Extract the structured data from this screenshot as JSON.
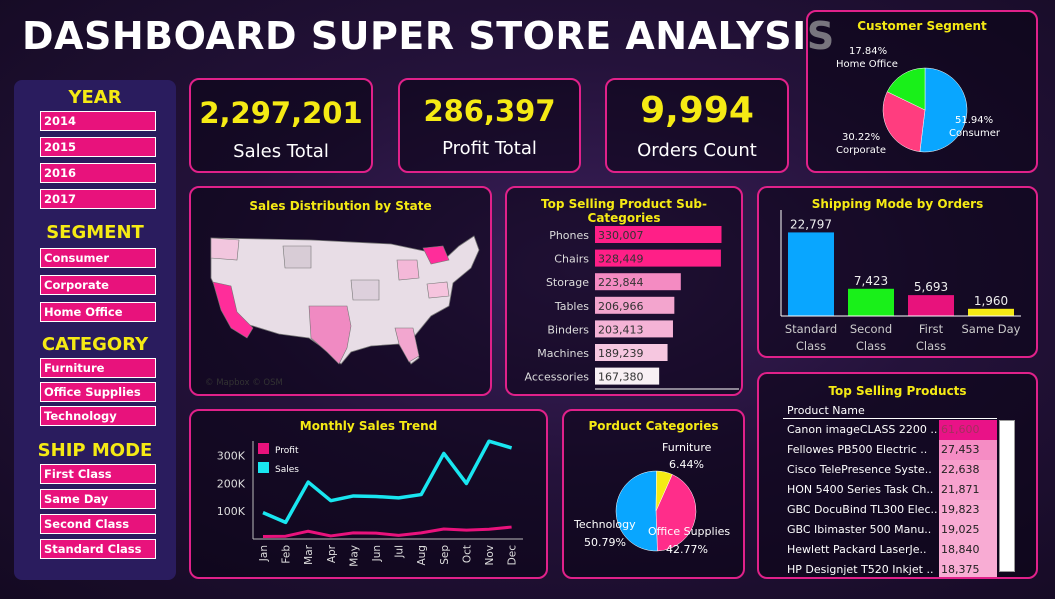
{
  "title": "DASHBOARD SUPER STORE ANALYSIS",
  "filters": {
    "year": {
      "heading": "YEAR",
      "items": [
        "2014",
        "2015",
        "2016",
        "2017"
      ]
    },
    "segment": {
      "heading": "SEGMENT",
      "items": [
        "Consumer",
        "Corporate",
        "Home Office"
      ]
    },
    "category": {
      "heading": "CATEGORY",
      "items": [
        "Furniture",
        "Office Supplies",
        "Technology"
      ]
    },
    "ship_mode": {
      "heading": "SHIP MODE",
      "items": [
        "First Class",
        "Same Day",
        "Second Class",
        "Standard Class"
      ]
    }
  },
  "kpis": [
    {
      "value": "2,297,201",
      "label": "Sales Total"
    },
    {
      "value": "286,397",
      "label": "Profit Total"
    },
    {
      "value": "9,994",
      "label": "Orders Count"
    }
  ],
  "map": {
    "title": "Sales Distribution by State",
    "credit": "© Mapbox © OSM"
  },
  "colors": {
    "accent": "#e8127c",
    "yellow": "#f5ea14",
    "cyan": "#19e6f0",
    "green": "#19f019",
    "blue": "#09a6ff"
  },
  "chart_data": [
    {
      "id": "customer_segment",
      "type": "pie",
      "title": "Customer Segment",
      "categories": [
        "Consumer",
        "Corporate",
        "Home Office"
      ],
      "values": [
        51.94,
        30.22,
        17.84
      ],
      "labels": [
        "51.94%",
        "30.22%",
        "17.84%"
      ],
      "colors": [
        "#09a6ff",
        "#ff3d7f",
        "#19f019"
      ]
    },
    {
      "id": "top_subcategories",
      "type": "bar",
      "title": "Top Selling Product Sub-Categories",
      "categories": [
        "Phones",
        "Chairs",
        "Storage",
        "Tables",
        "Binders",
        "Machines",
        "Accessories"
      ],
      "values": [
        330007,
        328449,
        223844,
        206966,
        203413,
        189239,
        167380
      ],
      "labels": [
        "330,007",
        "328,449",
        "223,844",
        "206,966",
        "203,413",
        "189,239",
        "167,380"
      ]
    },
    {
      "id": "shipping_mode",
      "type": "bar",
      "title": "Shipping Mode by Orders",
      "categories": [
        "Standard\nClass",
        "Second\nClass",
        "First\nClass",
        "Same Day"
      ],
      "values": [
        22797,
        7423,
        5693,
        1960
      ],
      "labels": [
        "22,797",
        "7,423",
        "5,693",
        "1,960"
      ],
      "colors": [
        "#09a6ff",
        "#19f019",
        "#e8127c",
        "#f5ea14"
      ]
    },
    {
      "id": "monthly_trend",
      "type": "line",
      "title": "Monthly Sales Trend",
      "categories": [
        "Jan",
        "Feb",
        "Mar",
        "Apr",
        "May",
        "Jun",
        "Jul",
        "Aug",
        "Sep",
        "Oct",
        "Nov",
        "Dec"
      ],
      "series": [
        {
          "name": "Profit",
          "values": [
            9000,
            10000,
            28000,
            11000,
            22000,
            21000,
            13000,
            22000,
            36000,
            32000,
            35000,
            43000
          ],
          "color": "#e8127c"
        },
        {
          "name": "Sales",
          "values": [
            95000,
            60000,
            205000,
            138000,
            155000,
            153000,
            148000,
            160000,
            308000,
            200000,
            352000,
            328000
          ],
          "color": "#19e6f0"
        }
      ],
      "yticks": [
        "100K",
        "200K",
        "300K"
      ],
      "ylim": [
        0,
        360000
      ]
    },
    {
      "id": "product_categories",
      "type": "pie",
      "title": "Porduct Categories",
      "categories": [
        "Office Supplies",
        "Technology",
        "Furniture"
      ],
      "values": [
        42.77,
        50.79,
        6.44
      ],
      "labels": [
        "42.77%",
        "50.79%",
        "6.44%"
      ],
      "colors": [
        "#ff2d8a",
        "#09a6ff",
        "#f5ea14"
      ]
    },
    {
      "id": "top_products",
      "type": "table",
      "title": "Top Selling Products",
      "header": "Product Name",
      "rows": [
        {
          "name": "Canon imageCLASS 2200 ..",
          "value": "61,600",
          "frac": 1.0
        },
        {
          "name": "Fellowes PB500 Electric ..",
          "value": "27,453",
          "frac": 0.45
        },
        {
          "name": "Cisco TelePresence Syste..",
          "value": "22,638",
          "frac": 0.37
        },
        {
          "name": "HON 5400 Series Task Ch..",
          "value": "21,871",
          "frac": 0.35
        },
        {
          "name": "GBC DocuBind TL300 Elec..",
          "value": "19,823",
          "frac": 0.32
        },
        {
          "name": "GBC Ibimaster 500 Manu..",
          "value": "19,025",
          "frac": 0.31
        },
        {
          "name": "Hewlett Packard LaserJe..",
          "value": "18,840",
          "frac": 0.31
        },
        {
          "name": "HP Designjet T520 Inkjet ..",
          "value": "18,375",
          "frac": 0.3
        }
      ]
    }
  ]
}
